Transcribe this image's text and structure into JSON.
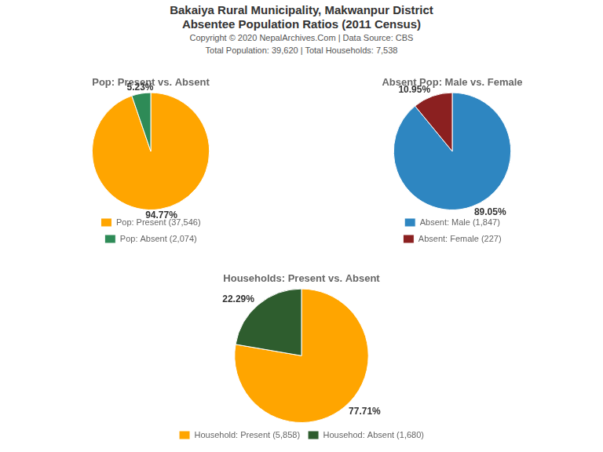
{
  "title": [
    "Bakaiya Rural Municipality, Makwanpur District",
    "Absentee Population Ratios (2011 Census)"
  ],
  "subtitle": [
    "Copyright © 2020 NepalArchives.Com | Data Source: CBS",
    "Total Population: 39,620 | Total Households: 7,538"
  ],
  "chart_data": [
    {
      "type": "pie",
      "title": "Pop: Present vs. Absent",
      "categories": [
        "Pop: Present (37,546)",
        "Pop: Absent (2,074)"
      ],
      "values": [
        94.77,
        5.23
      ],
      "value_labels": [
        "94.77%",
        "5.23%"
      ],
      "colors": [
        "#FFA500",
        "#2E8B57"
      ],
      "data_labels": true,
      "legend": "bottom"
    },
    {
      "type": "pie",
      "title": "Absent Pop: Male vs. Female",
      "categories": [
        "Absent: Male (1,847)",
        "Absent: Female (227)"
      ],
      "values": [
        89.05,
        10.95
      ],
      "value_labels": [
        "89.05%",
        "10.95%"
      ],
      "colors": [
        "#2E86C1",
        "#8B2020"
      ],
      "data_labels": true,
      "legend": "bottom"
    },
    {
      "type": "pie",
      "title": "Households: Present vs. Absent",
      "categories": [
        "Household: Present (5,858)",
        "Househod: Absent (1,680)"
      ],
      "values": [
        77.71,
        22.29
      ],
      "value_labels": [
        "77.71%",
        "22.29%"
      ],
      "colors": [
        "#FFA500",
        "#2E5D2E"
      ],
      "data_labels": true,
      "legend": "bottom"
    }
  ]
}
